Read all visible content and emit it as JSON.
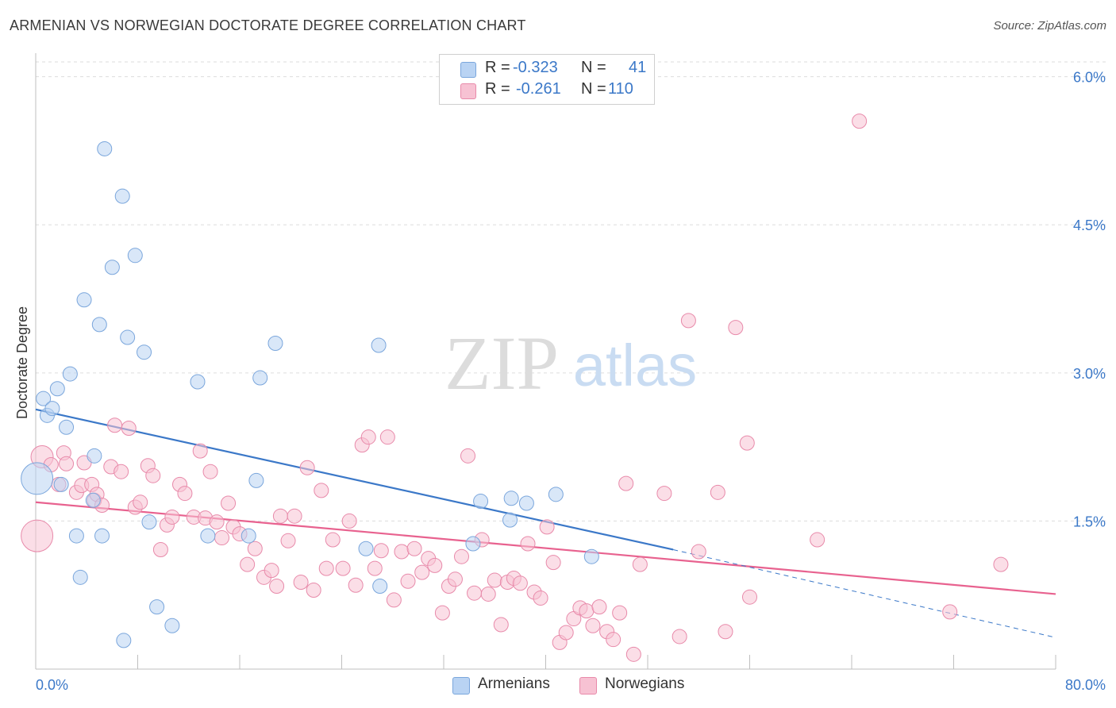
{
  "header": {
    "title": "ARMENIAN VS NORWEGIAN DOCTORATE DEGREE CORRELATION CHART",
    "source": "Source: ZipAtlas.com"
  },
  "colors": {
    "armenians_fill": "#b9d3f3",
    "armenians_stroke": "#7aa6dc",
    "armenians_line": "#3b78c8",
    "norwegians_fill": "#f7c2d3",
    "norwegians_stroke": "#e88aaa",
    "norwegians_line": "#e8628f",
    "tick_label": "#3b78c8",
    "grid": "#dddddd"
  },
  "legend_top": {
    "rows": [
      {
        "r_label": "R =",
        "r_value": "-0.323",
        "n_label": "N =",
        "n_value": "41"
      },
      {
        "r_label": "R =",
        "r_value": "-0.261",
        "n_label": "N =",
        "n_value": "110"
      }
    ]
  },
  "legend_bottom": {
    "armenians": "Armenians",
    "norwegians": "Norwegians"
  },
  "watermark": {
    "zip": "ZIP",
    "atlas": "atlas"
  },
  "chart_data": {
    "type": "scatter",
    "title": "ARMENIAN VS NORWEGIAN DOCTORATE DEGREE CORRELATION CHART",
    "xlabel": "",
    "ylabel": "Doctorate Degree",
    "xlim": [
      0,
      80
    ],
    "ylim": [
      0,
      6.15
    ],
    "x_tick_labels": [
      "0.0%",
      "80.0%"
    ],
    "y_ticks": [
      1.5,
      3.0,
      4.5,
      6.0
    ],
    "y_tick_labels": [
      "1.5%",
      "3.0%",
      "4.5%",
      "6.0%"
    ],
    "grid": "horizontal dashed",
    "legend_position": "top-center and bottom",
    "series": [
      {
        "name": "Armenians",
        "r": -0.323,
        "n": 41,
        "trend": {
          "x": [
            0,
            50
          ],
          "y": [
            2.63,
            1.21
          ],
          "dashed_extension_to": [
            80,
            0.32
          ]
        },
        "points": [
          [
            0.1,
            1.93,
            "L"
          ],
          [
            0.6,
            2.74
          ],
          [
            0.9,
            2.57
          ],
          [
            1.3,
            2.64
          ],
          [
            1.7,
            2.84
          ],
          [
            2.0,
            1.87
          ],
          [
            2.4,
            2.45
          ],
          [
            2.7,
            2.99
          ],
          [
            3.2,
            1.35
          ],
          [
            3.5,
            0.93
          ],
          [
            3.8,
            3.74
          ],
          [
            4.5,
            1.71
          ],
          [
            4.6,
            2.16
          ],
          [
            5.0,
            3.49
          ],
          [
            5.2,
            1.35
          ],
          [
            5.4,
            5.27
          ],
          [
            6.0,
            4.07
          ],
          [
            6.8,
            4.79
          ],
          [
            6.9,
            0.29
          ],
          [
            7.2,
            3.36
          ],
          [
            7.8,
            4.19
          ],
          [
            8.5,
            3.21
          ],
          [
            8.9,
            1.49
          ],
          [
            9.5,
            0.63
          ],
          [
            10.7,
            0.44
          ],
          [
            12.7,
            2.91
          ],
          [
            13.5,
            1.35
          ],
          [
            16.7,
            1.35
          ],
          [
            17.3,
            1.91
          ],
          [
            17.6,
            2.95
          ],
          [
            18.8,
            3.3
          ],
          [
            25.9,
            1.22
          ],
          [
            26.9,
            3.28
          ],
          [
            27.0,
            0.84
          ],
          [
            34.3,
            1.27
          ],
          [
            34.9,
            1.7
          ],
          [
            37.2,
            1.51
          ],
          [
            37.3,
            1.73
          ],
          [
            38.5,
            1.68
          ],
          [
            40.8,
            1.77
          ],
          [
            43.6,
            1.14
          ]
        ]
      },
      {
        "name": "Norwegians",
        "r": -0.261,
        "n": 110,
        "trend": {
          "x": [
            0,
            80
          ],
          "y": [
            1.69,
            0.76
          ]
        },
        "points": [
          [
            0.1,
            1.35,
            "L"
          ],
          [
            0.5,
            2.15,
            "M"
          ],
          [
            1.2,
            2.07
          ],
          [
            1.8,
            1.87
          ],
          [
            2.2,
            2.19
          ],
          [
            2.4,
            2.08
          ],
          [
            3.2,
            1.79
          ],
          [
            3.6,
            1.86
          ],
          [
            3.8,
            2.09
          ],
          [
            4.4,
            1.87
          ],
          [
            4.6,
            1.71
          ],
          [
            4.8,
            1.77
          ],
          [
            5.2,
            1.66
          ],
          [
            5.9,
            2.05
          ],
          [
            6.2,
            2.47
          ],
          [
            6.7,
            2.0
          ],
          [
            7.3,
            2.44
          ],
          [
            7.8,
            1.64
          ],
          [
            8.2,
            1.69
          ],
          [
            8.8,
            2.06
          ],
          [
            9.2,
            1.96
          ],
          [
            9.8,
            1.21
          ],
          [
            10.3,
            1.46
          ],
          [
            10.7,
            1.54
          ],
          [
            11.3,
            1.87
          ],
          [
            11.7,
            1.78
          ],
          [
            12.4,
            1.54
          ],
          [
            12.9,
            2.21
          ],
          [
            13.3,
            1.53
          ],
          [
            13.7,
            2.0
          ],
          [
            14.2,
            1.49
          ],
          [
            14.6,
            1.33
          ],
          [
            15.1,
            1.68
          ],
          [
            15.5,
            1.44
          ],
          [
            16.0,
            1.37
          ],
          [
            16.6,
            1.06
          ],
          [
            17.2,
            1.22
          ],
          [
            17.9,
            0.93
          ],
          [
            18.5,
            1.0
          ],
          [
            18.9,
            0.84
          ],
          [
            19.2,
            1.55
          ],
          [
            19.8,
            1.3
          ],
          [
            20.3,
            1.55
          ],
          [
            20.8,
            0.88
          ],
          [
            21.3,
            2.04
          ],
          [
            21.8,
            0.8
          ],
          [
            22.4,
            1.81
          ],
          [
            22.8,
            1.02
          ],
          [
            23.3,
            1.31
          ],
          [
            24.1,
            1.02
          ],
          [
            24.6,
            1.5
          ],
          [
            25.1,
            0.85
          ],
          [
            25.6,
            2.27
          ],
          [
            26.1,
            2.35
          ],
          [
            26.6,
            1.02
          ],
          [
            27.1,
            1.2
          ],
          [
            27.6,
            2.35
          ],
          [
            28.1,
            0.7
          ],
          [
            28.7,
            1.19
          ],
          [
            29.2,
            0.89
          ],
          [
            29.7,
            1.22
          ],
          [
            30.3,
            0.98
          ],
          [
            30.8,
            1.12
          ],
          [
            31.3,
            1.05
          ],
          [
            31.9,
            0.57
          ],
          [
            32.4,
            0.84
          ],
          [
            32.9,
            0.91
          ],
          [
            33.4,
            1.14
          ],
          [
            33.9,
            2.16
          ],
          [
            34.4,
            0.77
          ],
          [
            35.0,
            1.31
          ],
          [
            35.5,
            0.76
          ],
          [
            36.0,
            0.9
          ],
          [
            36.5,
            0.45
          ],
          [
            37.0,
            0.88
          ],
          [
            37.5,
            0.92
          ],
          [
            38.0,
            0.87
          ],
          [
            38.6,
            1.27
          ],
          [
            39.1,
            0.78
          ],
          [
            39.6,
            0.72
          ],
          [
            40.1,
            1.44
          ],
          [
            40.6,
            1.08
          ],
          [
            41.1,
            0.27
          ],
          [
            41.6,
            0.37
          ],
          [
            42.2,
            0.51
          ],
          [
            42.7,
            0.62
          ],
          [
            43.2,
            0.59
          ],
          [
            43.7,
            0.44
          ],
          [
            44.2,
            0.63
          ],
          [
            44.8,
            0.38
          ],
          [
            45.3,
            0.3
          ],
          [
            45.8,
            0.57
          ],
          [
            46.3,
            1.88
          ],
          [
            46.9,
            0.15
          ],
          [
            47.4,
            1.06
          ],
          [
            49.3,
            1.78
          ],
          [
            50.5,
            0.33
          ],
          [
            51.2,
            3.53
          ],
          [
            52.0,
            1.19
          ],
          [
            53.5,
            1.79
          ],
          [
            54.1,
            0.38
          ],
          [
            54.9,
            3.46
          ],
          [
            55.8,
            2.29
          ],
          [
            56.0,
            0.73
          ],
          [
            61.3,
            1.31
          ],
          [
            64.6,
            5.55
          ],
          [
            71.7,
            0.58
          ],
          [
            75.7,
            1.06
          ]
        ]
      }
    ]
  }
}
